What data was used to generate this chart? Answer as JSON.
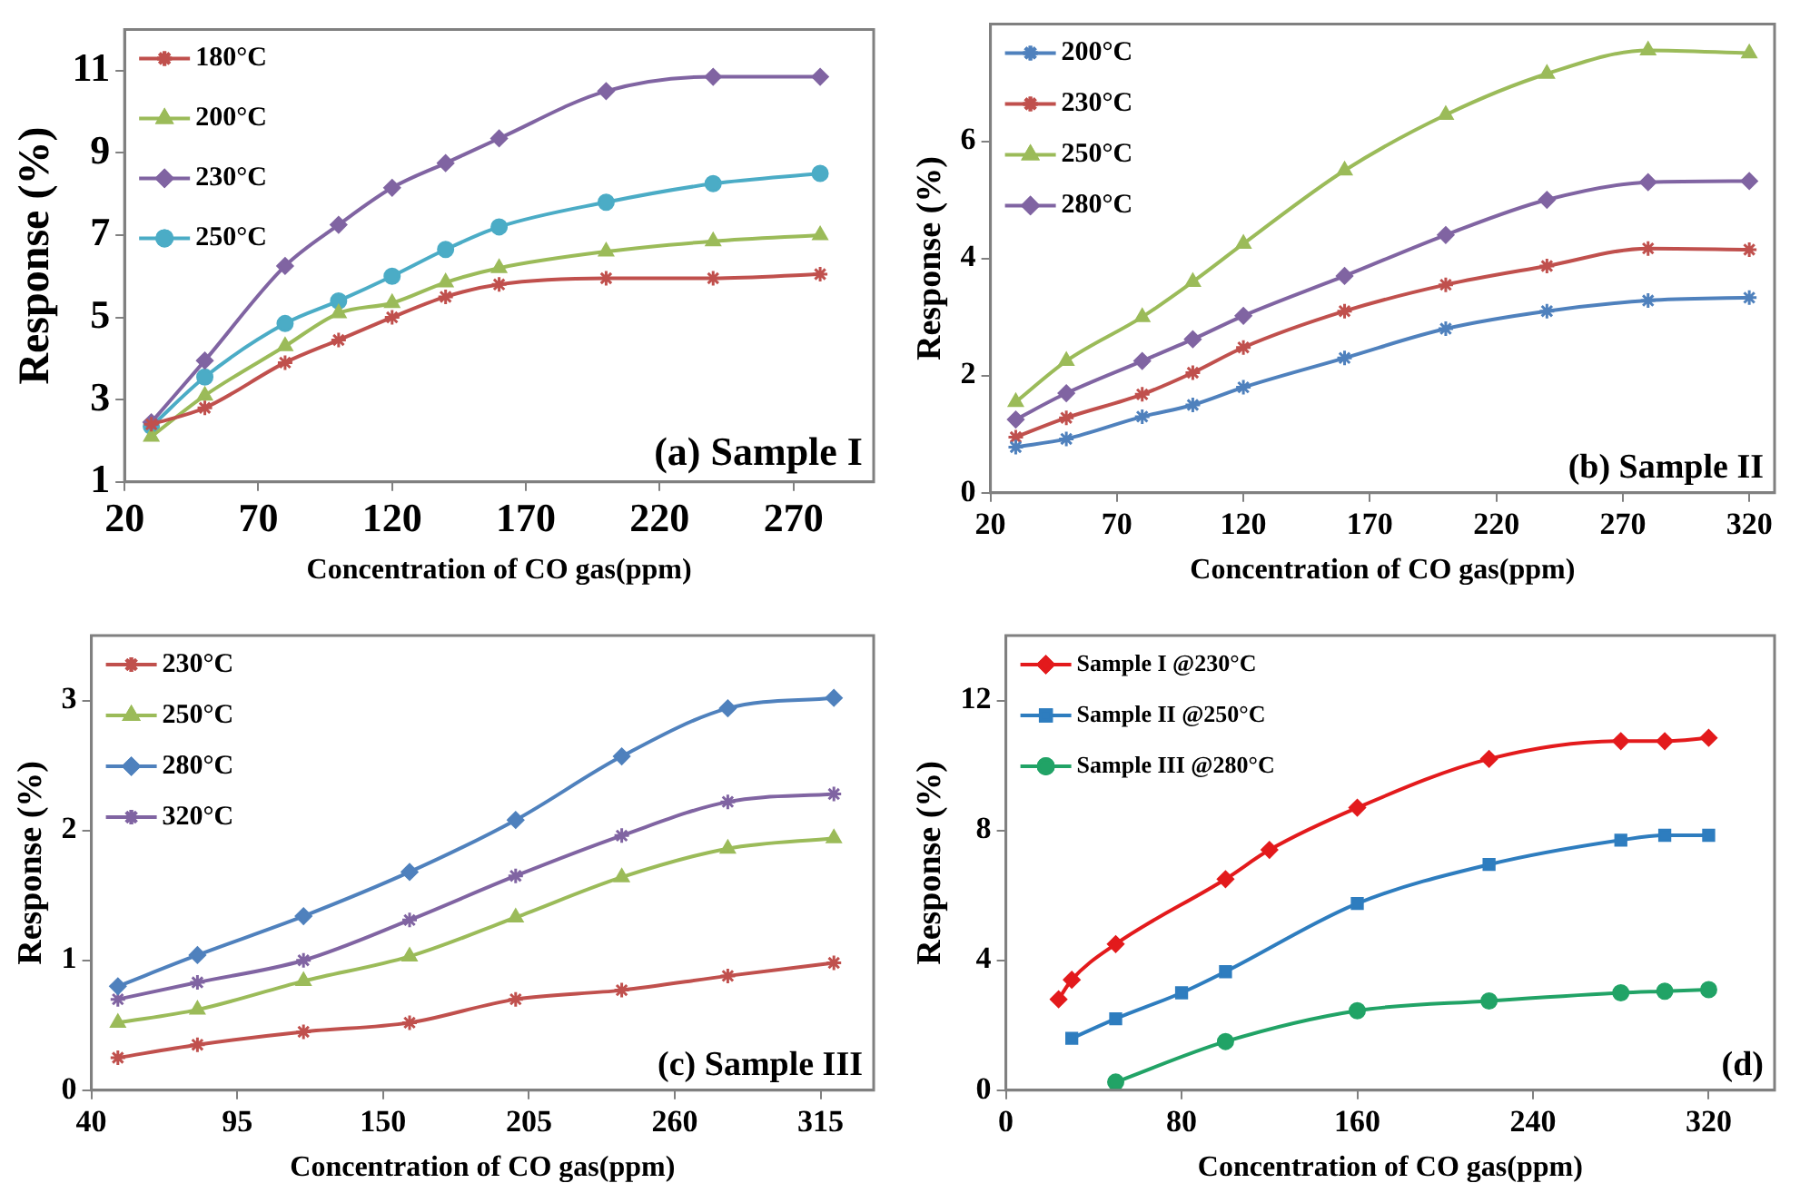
{
  "chart_data": [
    {
      "type": "line",
      "xlabel": "Concentration of CO gas(ppm)",
      "ylabel": "Response (%)",
      "annotations": [
        "(a) Sample I"
      ],
      "legend": "top left",
      "grid": false,
      "x": [
        30,
        50,
        80,
        100,
        120,
        140,
        160,
        200,
        240,
        280
      ],
      "xlim": [
        20,
        300
      ],
      "xticks": [
        20,
        70,
        120,
        170,
        220,
        270
      ],
      "ylim": [
        1,
        12
      ],
      "yticks": [
        1,
        3,
        5,
        7,
        9,
        11
      ],
      "series": [
        {
          "name": "180°C",
          "color": "#c0504d",
          "marker": "cross",
          "values": [
            2.4,
            2.8,
            3.9,
            4.45,
            5.0,
            5.5,
            5.8,
            5.95,
            5.95,
            6.05
          ]
        },
        {
          "name": "200°C",
          "color": "#9bbb59",
          "marker": "triangle",
          "values": [
            2.1,
            3.1,
            4.3,
            5.1,
            5.35,
            5.85,
            6.2,
            6.6,
            6.85,
            7.0
          ]
        },
        {
          "name": "230°C",
          "color": "#8064a2",
          "marker": "diamond",
          "values": [
            2.45,
            3.95,
            6.25,
            7.25,
            8.15,
            8.75,
            9.35,
            10.5,
            10.85,
            10.85
          ]
        },
        {
          "name": "250°C",
          "color": "#4bacc6",
          "marker": "circle",
          "values": [
            2.35,
            3.55,
            4.85,
            5.4,
            6.0,
            6.65,
            7.2,
            7.8,
            8.25,
            8.5
          ]
        }
      ]
    },
    {
      "type": "line",
      "xlabel": "Concentration of CO gas(ppm)",
      "ylabel": "Response (%)",
      "annotations": [
        "(b) Sample II"
      ],
      "legend": "top left",
      "grid": false,
      "x": [
        30,
        50,
        80,
        100,
        120,
        160,
        200,
        240,
        280,
        320
      ],
      "xlim": [
        20,
        330
      ],
      "xticks": [
        20,
        70,
        120,
        170,
        220,
        270,
        320
      ],
      "ylim": [
        0,
        8
      ],
      "yticks": [
        0,
        2,
        4,
        6
      ],
      "series": [
        {
          "name": "200°C",
          "color": "#4f81bd",
          "marker": "cross",
          "values": [
            0.78,
            0.92,
            1.3,
            1.5,
            1.8,
            2.3,
            2.8,
            3.1,
            3.28,
            3.33
          ]
        },
        {
          "name": "230°C",
          "color": "#c0504d",
          "marker": "cross",
          "values": [
            0.95,
            1.28,
            1.68,
            2.05,
            2.48,
            3.1,
            3.55,
            3.87,
            4.17,
            4.15
          ]
        },
        {
          "name": "250°C",
          "color": "#9bbb59",
          "marker": "triangle",
          "values": [
            1.55,
            2.25,
            3.0,
            3.6,
            4.25,
            5.5,
            6.45,
            7.15,
            7.55,
            7.5
          ]
        },
        {
          "name": "280°C",
          "color": "#8064a2",
          "marker": "diamond",
          "values": [
            1.25,
            1.7,
            2.25,
            2.62,
            3.02,
            3.7,
            4.4,
            5.0,
            5.3,
            5.32
          ]
        }
      ]
    },
    {
      "type": "line",
      "xlabel": "Concentration of CO gas(ppm)",
      "ylabel": "Response (%)",
      "annotations": [
        "(c) Sample III"
      ],
      "legend": "top left",
      "grid": false,
      "x": [
        50,
        80,
        120,
        160,
        200,
        240,
        280,
        320
      ],
      "xlim": [
        40,
        335
      ],
      "xticks": [
        40,
        95,
        150,
        205,
        260,
        315
      ],
      "ylim": [
        0,
        3.5
      ],
      "yticks": [
        0,
        1,
        2,
        3
      ],
      "series": [
        {
          "name": "230°C",
          "color": "#c0504d",
          "marker": "cross",
          "values": [
            0.25,
            0.35,
            0.45,
            0.52,
            0.7,
            0.77,
            0.88,
            0.98
          ]
        },
        {
          "name": "250°C",
          "color": "#9bbb59",
          "marker": "triangle",
          "values": [
            0.52,
            0.62,
            0.84,
            1.03,
            1.33,
            1.64,
            1.86,
            1.94
          ]
        },
        {
          "name": "280°C",
          "color": "#4f81bd",
          "marker": "diamond",
          "values": [
            0.8,
            1.04,
            1.34,
            1.68,
            2.08,
            2.57,
            2.94,
            3.02
          ]
        },
        {
          "name": "320°C",
          "color": "#8064a2",
          "marker": "cross",
          "values": [
            0.7,
            0.83,
            1.0,
            1.31,
            1.65,
            1.96,
            2.22,
            2.28
          ]
        }
      ]
    },
    {
      "type": "line",
      "xlabel": "Concentration of CO gas(ppm)",
      "ylabel": "Response (%)",
      "annotations": [
        "(d)"
      ],
      "legend": "top left",
      "grid": false,
      "xlim": [
        0,
        350
      ],
      "xticks": [
        0,
        80,
        160,
        240,
        320
      ],
      "ylim": [
        0,
        14
      ],
      "yticks": [
        0,
        4,
        8,
        12
      ],
      "series": [
        {
          "name": "Sample I @230°C",
          "color": "#e31a1c",
          "marker": "diamond",
          "x": [
            24,
            30,
            50,
            100,
            120,
            160,
            220,
            280,
            300,
            320
          ],
          "values": [
            2.8,
            3.4,
            4.5,
            6.5,
            7.4,
            8.7,
            10.2,
            10.75,
            10.75,
            10.85
          ]
        },
        {
          "name": "Sample II @250°C",
          "color": "#2e7dbf",
          "marker": "square",
          "x": [
            30,
            50,
            80,
            100,
            160,
            220,
            280,
            300,
            320
          ],
          "values": [
            1.6,
            2.2,
            3.0,
            3.65,
            5.75,
            6.95,
            7.7,
            7.85,
            7.85
          ]
        },
        {
          "name": "Sample III @280°C",
          "color": "#21a366",
          "marker": "circle",
          "x": [
            50,
            100,
            160,
            220,
            280,
            300,
            320
          ],
          "values": [
            0.25,
            1.5,
            2.45,
            2.75,
            3.0,
            3.05,
            3.1
          ]
        }
      ]
    }
  ]
}
